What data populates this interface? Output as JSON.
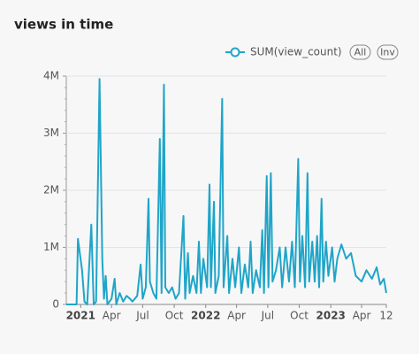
{
  "chart_data": {
    "type": "line",
    "title": "views in time",
    "legend_buttons": [
      "All",
      "Inv"
    ],
    "x": [
      "2020-11-20",
      "2020-12-10",
      "2020-12-20",
      "2020-12-24",
      "2021-01-05",
      "2021-01-12",
      "2021-01-20",
      "2021-02-01",
      "2021-02-08",
      "2021-02-15",
      "2021-02-25",
      "2021-03-05",
      "2021-03-10",
      "2021-03-15",
      "2021-03-20",
      "2021-04-01",
      "2021-04-10",
      "2021-04-15",
      "2021-04-25",
      "2021-05-05",
      "2021-05-15",
      "2021-05-25",
      "2021-06-01",
      "2021-06-15",
      "2021-06-25",
      "2021-07-01",
      "2021-07-10",
      "2021-07-18",
      "2021-07-22",
      "2021-08-01",
      "2021-08-10",
      "2021-08-20",
      "2021-08-25",
      "2021-09-01",
      "2021-09-05",
      "2021-09-15",
      "2021-09-25",
      "2021-10-05",
      "2021-10-15",
      "2021-10-28",
      "2021-11-02",
      "2021-11-10",
      "2021-11-15",
      "2021-11-25",
      "2021-12-05",
      "2021-12-12",
      "2021-12-18",
      "2021-12-25",
      "2022-01-05",
      "2022-01-12",
      "2022-01-16",
      "2022-01-25",
      "2022-01-29",
      "2022-02-08",
      "2022-02-18",
      "2022-02-22",
      "2022-03-05",
      "2022-03-10",
      "2022-03-20",
      "2022-03-28",
      "2022-04-08",
      "2022-04-15",
      "2022-04-25",
      "2022-05-05",
      "2022-05-12",
      "2022-05-18",
      "2022-05-28",
      "2022-06-08",
      "2022-06-15",
      "2022-06-20",
      "2022-06-28",
      "2022-07-03",
      "2022-07-10",
      "2022-07-15",
      "2022-07-25",
      "2022-08-05",
      "2022-08-12",
      "2022-08-22",
      "2022-09-01",
      "2022-09-10",
      "2022-09-18",
      "2022-09-28",
      "2022-10-03",
      "2022-10-10",
      "2022-10-18",
      "2022-10-25",
      "2022-10-30",
      "2022-11-08",
      "2022-11-15",
      "2022-11-22",
      "2022-11-28",
      "2022-12-05",
      "2022-12-10",
      "2022-12-18",
      "2022-12-25",
      "2023-01-05",
      "2023-01-12",
      "2023-01-20",
      "2023-02-01",
      "2023-02-15",
      "2023-03-01",
      "2023-03-15",
      "2023-04-01",
      "2023-04-15",
      "2023-05-01",
      "2023-05-15",
      "2023-05-25",
      "2023-06-05",
      "2023-06-12"
    ],
    "series": [
      {
        "name": "SUM(view_count)",
        "color": "#1fa5c8",
        "values": [
          0,
          0,
          0,
          1150000,
          600000,
          50000,
          0,
          1400000,
          0,
          50000,
          3950000,
          800000,
          100000,
          500000,
          0,
          100000,
          450000,
          0,
          200000,
          50000,
          150000,
          100000,
          50000,
          150000,
          700000,
          100000,
          300000,
          1850000,
          400000,
          200000,
          100000,
          2900000,
          200000,
          3850000,
          300000,
          200000,
          300000,
          100000,
          200000,
          1550000,
          100000,
          900000,
          200000,
          500000,
          200000,
          1100000,
          200000,
          800000,
          300000,
          2100000,
          300000,
          1800000,
          200000,
          500000,
          3600000,
          300000,
          1200000,
          200000,
          800000,
          300000,
          1000000,
          200000,
          700000,
          300000,
          1100000,
          200000,
          600000,
          300000,
          1300000,
          200000,
          2250000,
          300000,
          2300000,
          400000,
          600000,
          1000000,
          300000,
          1000000,
          400000,
          1100000,
          300000,
          2550000,
          400000,
          1200000,
          300000,
          2300000,
          400000,
          1100000,
          400000,
          1200000,
          300000,
          1850000,
          400000,
          1100000,
          500000,
          1000000,
          400000,
          800000,
          1050000,
          800000,
          900000,
          500000,
          400000,
          600000,
          450000,
          650000,
          350000,
          450000,
          200000
        ]
      }
    ],
    "xlim": [
      "2020-11-20",
      "2023-06-12"
    ],
    "xticks": [
      {
        "value": "2021-01-01",
        "label": "2021"
      },
      {
        "value": "2021-04-01",
        "label": "Apr"
      },
      {
        "value": "2021-07-01",
        "label": "Jul"
      },
      {
        "value": "2021-10-01",
        "label": "Oct"
      },
      {
        "value": "2022-01-01",
        "label": "2022"
      },
      {
        "value": "2022-04-01",
        "label": "Apr"
      },
      {
        "value": "2022-07-01",
        "label": "Jul"
      },
      {
        "value": "2022-10-01",
        "label": "Oct"
      },
      {
        "value": "2023-01-01",
        "label": "2023"
      },
      {
        "value": "2023-04-01",
        "label": "Apr"
      },
      {
        "value": "2023-06-12",
        "label": "12"
      }
    ],
    "ylim": [
      0,
      4000000
    ],
    "yticks": [
      0,
      {
        "value": 1000000,
        "label": "1M"
      },
      {
        "value": 2000000,
        "label": "2M"
      },
      {
        "value": 3000000,
        "label": "3M"
      },
      {
        "value": 4000000,
        "label": "4M"
      }
    ],
    "grid": true
  }
}
